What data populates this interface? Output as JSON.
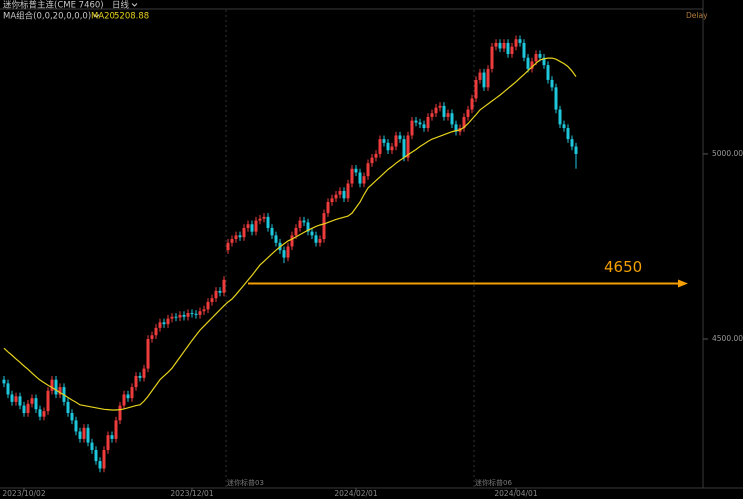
{
  "chart_data": {
    "type": "candlestick",
    "title": "迷你标普主连(CME 7460)",
    "period": "日线",
    "indicator": "MA组合(0,0,20,0,0,0)",
    "delay_label": "Delay",
    "up_color": "#ee3b3b",
    "down_color": "#1fc7dc",
    "ylim": [
      4100,
      5416
    ],
    "yticks": [
      {
        "value": 4500,
        "label": "4500.00"
      },
      {
        "value": 5000,
        "label": "5000.00"
      }
    ],
    "hline": {
      "value": 4650,
      "color": "#f5a000"
    },
    "contract_labels": [
      {
        "label": "迷你标普03",
        "at": 56
      },
      {
        "label": "迷你标普06",
        "at": 118
      }
    ],
    "categories": [
      null,
      null,
      null,
      null,
      null,
      "2023/10/02",
      null,
      null,
      null,
      null,
      null,
      null,
      null,
      null,
      null,
      null,
      null,
      null,
      null,
      null,
      null,
      null,
      null,
      null,
      null,
      null,
      null,
      null,
      null,
      null,
      null,
      null,
      null,
      null,
      null,
      null,
      null,
      null,
      null,
      null,
      null,
      null,
      null,
      null,
      null,
      null,
      null,
      "2023/12/01",
      null,
      null,
      null,
      null,
      null,
      null,
      null,
      null,
      null,
      null,
      null,
      null,
      null,
      null,
      null,
      null,
      null,
      null,
      null,
      null,
      null,
      null,
      null,
      null,
      null,
      null,
      null,
      null,
      null,
      null,
      null,
      null,
      null,
      null,
      null,
      null,
      null,
      null,
      null,
      null,
      "2024/02/01",
      null,
      null,
      null,
      null,
      null,
      null,
      null,
      null,
      null,
      null,
      null,
      null,
      null,
      null,
      null,
      null,
      null,
      null,
      null,
      null,
      null,
      null,
      null,
      null,
      null,
      null,
      null,
      null,
      null,
      null,
      null,
      null,
      null,
      null,
      null,
      null,
      null,
      null,
      null,
      "2024/04/01",
      null,
      null,
      null,
      null,
      null,
      null,
      null,
      null,
      null,
      null,
      null,
      null,
      null,
      null,
      null
    ],
    "ohlc": [
      [
        4390,
        4400,
        4370,
        4380
      ],
      [
        4380,
        4390,
        4340,
        4350
      ],
      [
        4350,
        4360,
        4320,
        4330
      ],
      [
        4330,
        4355,
        4320,
        4345
      ],
      [
        4345,
        4355,
        4310,
        4320
      ],
      [
        4320,
        4330,
        4290,
        4300
      ],
      [
        4300,
        4335,
        4290,
        4325
      ],
      [
        4325,
        4350,
        4315,
        4340
      ],
      [
        4340,
        4350,
        4300,
        4310
      ],
      [
        4310,
        4320,
        4280,
        4290
      ],
      [
        4290,
        4315,
        4280,
        4305
      ],
      [
        4305,
        4370,
        4295,
        4360
      ],
      [
        4360,
        4400,
        4350,
        4390
      ],
      [
        4390,
        4400,
        4340,
        4350
      ],
      [
        4350,
        4380,
        4340,
        4370
      ],
      [
        4370,
        4380,
        4320,
        4330
      ],
      [
        4330,
        4340,
        4290,
        4300
      ],
      [
        4300,
        4310,
        4270,
        4280
      ],
      [
        4280,
        4290,
        4240,
        4250
      ],
      [
        4250,
        4260,
        4220,
        4230
      ],
      [
        4230,
        4270,
        4220,
        4260
      ],
      [
        4260,
        4270,
        4210,
        4220
      ],
      [
        4220,
        4230,
        4190,
        4200
      ],
      [
        4200,
        4210,
        4160,
        4170
      ],
      [
        4170,
        4180,
        4140,
        4150
      ],
      [
        4150,
        4210,
        4140,
        4200
      ],
      [
        4200,
        4250,
        4190,
        4240
      ],
      [
        4240,
        4250,
        4220,
        4230
      ],
      [
        4230,
        4290,
        4220,
        4280
      ],
      [
        4280,
        4330,
        4270,
        4320
      ],
      [
        4320,
        4360,
        4310,
        4350
      ],
      [
        4350,
        4360,
        4330,
        4340
      ],
      [
        4340,
        4380,
        4330,
        4370
      ],
      [
        4370,
        4410,
        4360,
        4400
      ],
      [
        4400,
        4410,
        4385,
        4395
      ],
      [
        4395,
        4430,
        4385,
        4420
      ],
      [
        4420,
        4510,
        4410,
        4500
      ],
      [
        4500,
        4520,
        4490,
        4510
      ],
      [
        4510,
        4540,
        4500,
        4530
      ],
      [
        4530,
        4555,
        4520,
        4545
      ],
      [
        4545,
        4555,
        4530,
        4540
      ],
      [
        4540,
        4565,
        4530,
        4555
      ],
      [
        4555,
        4570,
        4545,
        4560
      ],
      [
        4560,
        4570,
        4548,
        4558
      ],
      [
        4558,
        4575,
        4548,
        4565
      ],
      [
        4565,
        4575,
        4550,
        4560
      ],
      [
        4560,
        4580,
        4550,
        4570
      ],
      [
        4570,
        4580,
        4558,
        4568
      ],
      [
        4568,
        4578,
        4555,
        4565
      ],
      [
        4565,
        4585,
        4555,
        4575
      ],
      [
        4575,
        4590,
        4565,
        4580
      ],
      [
        4580,
        4610,
        4570,
        4600
      ],
      [
        4600,
        4620,
        4590,
        4610
      ],
      [
        4610,
        4640,
        4600,
        4630
      ],
      [
        4630,
        4640,
        4615,
        4625
      ],
      [
        4625,
        4670,
        4615,
        4660
      ],
      [
        4740,
        4770,
        4730,
        4760
      ],
      [
        4760,
        4780,
        4750,
        4770
      ],
      [
        4770,
        4790,
        4760,
        4780
      ],
      [
        4780,
        4790,
        4765,
        4775
      ],
      [
        4775,
        4810,
        4765,
        4800
      ],
      [
        4800,
        4820,
        4790,
        4810
      ],
      [
        4810,
        4820,
        4780,
        4790
      ],
      [
        4790,
        4830,
        4780,
        4820
      ],
      [
        4820,
        4835,
        4810,
        4825
      ],
      [
        4825,
        4840,
        4815,
        4830
      ],
      [
        4830,
        4840,
        4790,
        4800
      ],
      [
        4800,
        4810,
        4770,
        4780
      ],
      [
        4780,
        4790,
        4750,
        4760
      ],
      [
        4760,
        4770,
        4730,
        4740
      ],
      [
        4740,
        4750,
        4705,
        4720
      ],
      [
        4720,
        4760,
        4710,
        4750
      ],
      [
        4750,
        4790,
        4740,
        4780
      ],
      [
        4780,
        4810,
        4770,
        4800
      ],
      [
        4800,
        4830,
        4790,
        4820
      ],
      [
        4820,
        4830,
        4805,
        4815
      ],
      [
        4815,
        4825,
        4780,
        4790
      ],
      [
        4790,
        4800,
        4770,
        4780
      ],
      [
        4780,
        4790,
        4750,
        4760
      ],
      [
        4760,
        4780,
        4750,
        4770
      ],
      [
        4770,
        4850,
        4760,
        4840
      ],
      [
        4840,
        4880,
        4830,
        4870
      ],
      [
        4870,
        4890,
        4860,
        4880
      ],
      [
        4880,
        4900,
        4870,
        4890
      ],
      [
        4890,
        4910,
        4880,
        4900
      ],
      [
        4900,
        4910,
        4870,
        4880
      ],
      [
        4880,
        4930,
        4870,
        4920
      ],
      [
        4920,
        4970,
        4910,
        4960
      ],
      [
        4960,
        4970,
        4940,
        4950
      ],
      [
        4950,
        4960,
        4910,
        4920
      ],
      [
        4920,
        4950,
        4910,
        4940
      ],
      [
        4940,
        4985,
        4930,
        4975
      ],
      [
        4975,
        5000,
        4965,
        4990
      ],
      [
        4990,
        5010,
        4980,
        5000
      ],
      [
        5000,
        5050,
        4990,
        5040
      ],
      [
        5040,
        5050,
        5020,
        5030
      ],
      [
        5030,
        5040,
        5000,
        5010
      ],
      [
        5010,
        5030,
        5000,
        5020
      ],
      [
        5020,
        5060,
        5010,
        5050
      ],
      [
        5050,
        5060,
        5030,
        5040
      ],
      [
        5040,
        5050,
        4980,
        4990
      ],
      [
        4990,
        5060,
        4980,
        5050
      ],
      [
        5050,
        5100,
        5040,
        5090
      ],
      [
        5090,
        5100,
        5075,
        5085
      ],
      [
        5085,
        5095,
        5070,
        5080
      ],
      [
        5080,
        5090,
        5060,
        5070
      ],
      [
        5070,
        5110,
        5060,
        5100
      ],
      [
        5100,
        5120,
        5090,
        5110
      ],
      [
        5110,
        5135,
        5100,
        5125
      ],
      [
        5125,
        5140,
        5115,
        5130
      ],
      [
        5130,
        5140,
        5090,
        5100
      ],
      [
        5100,
        5120,
        5090,
        5110
      ],
      [
        5110,
        5120,
        5070,
        5080
      ],
      [
        5080,
        5090,
        5050,
        5060
      ],
      [
        5060,
        5080,
        5050,
        5070
      ],
      [
        5070,
        5110,
        5060,
        5100
      ],
      [
        5100,
        5130,
        5090,
        5120
      ],
      [
        5120,
        5160,
        5110,
        5150
      ],
      [
        5150,
        5210,
        5140,
        5200
      ],
      [
        5200,
        5230,
        5190,
        5220
      ],
      [
        5220,
        5230,
        5170,
        5180
      ],
      [
        5180,
        5240,
        5170,
        5230
      ],
      [
        5230,
        5300,
        5220,
        5290
      ],
      [
        5290,
        5310,
        5280,
        5300
      ],
      [
        5300,
        5310,
        5275,
        5285
      ],
      [
        5285,
        5310,
        5275,
        5300
      ],
      [
        5300,
        5310,
        5260,
        5270
      ],
      [
        5270,
        5300,
        5260,
        5290
      ],
      [
        5290,
        5320,
        5280,
        5310
      ],
      [
        5310,
        5320,
        5290,
        5300
      ],
      [
        5300,
        5310,
        5250,
        5260
      ],
      [
        5260,
        5270,
        5220,
        5230
      ],
      [
        5230,
        5260,
        5220,
        5250
      ],
      [
        5250,
        5280,
        5240,
        5270
      ],
      [
        5270,
        5280,
        5250,
        5260
      ],
      [
        5260,
        5270,
        5230,
        5240
      ],
      [
        5240,
        5250,
        5190,
        5200
      ],
      [
        5200,
        5210,
        5170,
        5180
      ],
      [
        5180,
        5190,
        5110,
        5120
      ],
      [
        5120,
        5130,
        5070,
        5080
      ],
      [
        5080,
        5090,
        5060,
        5070
      ],
      [
        5070,
        5080,
        5030,
        5040
      ],
      [
        5040,
        5050,
        5010,
        5020
      ],
      [
        5020,
        5030,
        4960,
        5000
      ]
    ],
    "series": [
      {
        "name": "MA20",
        "color": "#e6d21c",
        "values": [
          4475,
          4465,
          4456,
          4446,
          4437,
          4427,
          4418,
          4408,
          4398,
          4389,
          4382,
          4375,
          4369,
          4362,
          4355,
          4349,
          4342,
          4335,
          4329,
          4322,
          4320,
          4318,
          4316,
          4314,
          4312,
          4310,
          4309,
          4308,
          4308,
          4309,
          4311,
          4314,
          4317,
          4320,
          4322,
          4332,
          4345,
          4360,
          4375,
          4390,
          4400,
          4410,
          4421,
          4436,
          4451,
          4466,
          4481,
          4496,
          4510,
          4524,
          4535,
          4546,
          4557,
          4568,
          4579,
          4590,
          4600,
          4608,
          4620,
          4633,
          4646,
          4659,
          4672,
          4686,
          4700,
          4710,
          4720,
          4730,
          4740,
          4749,
          4757,
          4765,
          4770,
          4776,
          4782,
          4788,
          4794,
          4799,
          4804,
          4808,
          4811,
          4815,
          4819,
          4823,
          4826,
          4829,
          4832,
          4840,
          4855,
          4870,
          4890,
          4908,
          4918,
          4928,
          4938,
          4948,
          4958,
          4966,
          4975,
          4983,
          4990,
          4998,
          5005,
          5012,
          5020,
          5027,
          5034,
          5040,
          5044,
          5048,
          5052,
          5056,
          5060,
          5063,
          5065,
          5072,
          5082,
          5094,
          5106,
          5119,
          5127,
          5135,
          5143,
          5151,
          5159,
          5168,
          5177,
          5186,
          5195,
          5205,
          5215,
          5225,
          5235,
          5245,
          5254,
          5257,
          5259,
          5259,
          5256,
          5250,
          5244,
          5236,
          5224,
          5208.88
        ]
      }
    ]
  }
}
